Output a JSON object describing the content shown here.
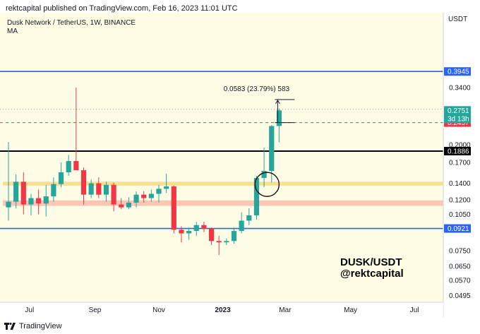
{
  "header": {
    "text": "rektcapital published on TradingView.com, Feb 16, 2023 11:01 UTC"
  },
  "footer": {
    "brand": "TradingView",
    "logo_icon": "tradingview-logo-icon"
  },
  "chart_data": {
    "type": "candlestick",
    "title": "Dusk Network / TetherUS, 1W, BINANCE",
    "indicator": "MA",
    "currency": "USDT",
    "y_scale": "log",
    "ylim": [
      0.0465,
      0.68
    ],
    "y_ticks": [
      "0.3400",
      "0.2000",
      "0.1700",
      "0.1400",
      "0.1200",
      "0.1050",
      "0.0750",
      "0.0650",
      "0.0570",
      "0.0495"
    ],
    "x_ticks": [
      {
        "label": "Jul",
        "week": 2.8
      },
      {
        "label": "Sep",
        "week": 11.5
      },
      {
        "label": "Nov",
        "week": 20.0
      },
      {
        "label": "2023",
        "week": 28.5
      },
      {
        "label": "Mar",
        "week": 36.8
      },
      {
        "label": "May",
        "week": 45.5
      },
      {
        "label": "Jul",
        "week": 54.0
      }
    ],
    "candles": [
      {
        "o": 0.112,
        "h": 0.205,
        "l": 0.099,
        "c": 0.118
      },
      {
        "o": 0.118,
        "h": 0.152,
        "l": 0.111,
        "c": 0.142
      },
      {
        "o": 0.142,
        "h": 0.155,
        "l": 0.105,
        "c": 0.115
      },
      {
        "o": 0.115,
        "h": 0.127,
        "l": 0.104,
        "c": 0.122
      },
      {
        "o": 0.122,
        "h": 0.132,
        "l": 0.105,
        "c": 0.116
      },
      {
        "o": 0.116,
        "h": 0.138,
        "l": 0.103,
        "c": 0.124
      },
      {
        "o": 0.124,
        "h": 0.148,
        "l": 0.118,
        "c": 0.139
      },
      {
        "o": 0.139,
        "h": 0.17,
        "l": 0.135,
        "c": 0.155
      },
      {
        "o": 0.155,
        "h": 0.182,
        "l": 0.15,
        "c": 0.172
      },
      {
        "o": 0.172,
        "h": 0.34,
        "l": 0.16,
        "c": 0.158
      },
      {
        "o": 0.158,
        "h": 0.162,
        "l": 0.115,
        "c": 0.126
      },
      {
        "o": 0.126,
        "h": 0.145,
        "l": 0.122,
        "c": 0.14
      },
      {
        "o": 0.14,
        "h": 0.148,
        "l": 0.122,
        "c": 0.126
      },
      {
        "o": 0.126,
        "h": 0.142,
        "l": 0.118,
        "c": 0.138
      },
      {
        "o": 0.138,
        "h": 0.141,
        "l": 0.108,
        "c": 0.115
      },
      {
        "o": 0.115,
        "h": 0.122,
        "l": 0.11,
        "c": 0.112
      },
      {
        "o": 0.112,
        "h": 0.123,
        "l": 0.11,
        "c": 0.117
      },
      {
        "o": 0.117,
        "h": 0.13,
        "l": 0.112,
        "c": 0.126
      },
      {
        "o": 0.126,
        "h": 0.13,
        "l": 0.117,
        "c": 0.122
      },
      {
        "o": 0.122,
        "h": 0.132,
        "l": 0.118,
        "c": 0.127
      },
      {
        "o": 0.127,
        "h": 0.138,
        "l": 0.117,
        "c": 0.133
      },
      {
        "o": 0.133,
        "h": 0.153,
        "l": 0.128,
        "c": 0.136
      },
      {
        "o": 0.136,
        "h": 0.137,
        "l": 0.088,
        "c": 0.091
      },
      {
        "o": 0.091,
        "h": 0.094,
        "l": 0.081,
        "c": 0.088
      },
      {
        "o": 0.088,
        "h": 0.093,
        "l": 0.083,
        "c": 0.09
      },
      {
        "o": 0.09,
        "h": 0.098,
        "l": 0.086,
        "c": 0.095
      },
      {
        "o": 0.095,
        "h": 0.098,
        "l": 0.089,
        "c": 0.092
      },
      {
        "o": 0.092,
        "h": 0.093,
        "l": 0.079,
        "c": 0.082
      },
      {
        "o": 0.082,
        "h": 0.086,
        "l": 0.072,
        "c": 0.081
      },
      {
        "o": 0.081,
        "h": 0.084,
        "l": 0.079,
        "c": 0.082
      },
      {
        "o": 0.082,
        "h": 0.093,
        "l": 0.08,
        "c": 0.09
      },
      {
        "o": 0.09,
        "h": 0.107,
        "l": 0.088,
        "c": 0.099
      },
      {
        "o": 0.099,
        "h": 0.111,
        "l": 0.095,
        "c": 0.104
      },
      {
        "o": 0.104,
        "h": 0.15,
        "l": 0.1,
        "c": 0.147
      },
      {
        "o": 0.147,
        "h": 0.195,
        "l": 0.135,
        "c": 0.157
      },
      {
        "o": 0.157,
        "h": 0.24,
        "l": 0.141,
        "c": 0.238
      },
      {
        "o": 0.238,
        "h": 0.28,
        "l": 0.205,
        "c": 0.2751
      }
    ],
    "levels": [
      {
        "value": 0.3945,
        "color": "#2962ff",
        "style": "solid",
        "label": "0.3945"
      },
      {
        "value": 0.1886,
        "color": "#000000",
        "style": "solid",
        "label": "0.1886"
      },
      {
        "value": 0.0921,
        "color": "#2962ff",
        "style": "solid",
        "label": "0.0921"
      },
      {
        "value": 0.2457,
        "color": "#f23645",
        "style": "dashed",
        "label": "0.2457"
      },
      {
        "value": 0.278,
        "color": "#9598a1",
        "style": "dotted"
      }
    ],
    "last_price": {
      "value": 0.2751,
      "label": "0.2751",
      "countdown": "3d 13h",
      "color": "#26a69a"
    },
    "zones": [
      {
        "from": 0.137,
        "to": 0.142,
        "color": "#f7dc8b"
      },
      {
        "from": 0.1135,
        "to": 0.1195,
        "color": "#f9c0b0"
      }
    ],
    "measure": {
      "from": 0.2457,
      "to": 0.304,
      "text": "0.0583 (23.79%) 583"
    },
    "circle_highlight": {
      "week": 34.4,
      "value": 0.1385
    },
    "watermark": [
      "DUSK/USDT",
      "@rektcapital"
    ],
    "colors": {
      "up": "#26a69a",
      "down": "#f23645",
      "background": "#fffde6"
    }
  }
}
